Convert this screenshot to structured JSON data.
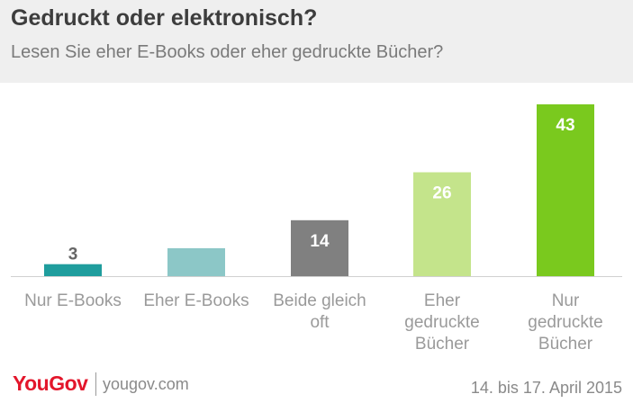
{
  "header": {
    "title": "Gedruckt oder elektronisch?",
    "subtitle": "Lesen Sie eher E-Books oder eher gedruckte Bücher?"
  },
  "chart_data": {
    "type": "bar",
    "categories": [
      [
        "Nur E-Books"
      ],
      [
        "Eher E-Books"
      ],
      [
        "Beide gleich",
        "oft"
      ],
      [
        "Eher",
        "gedruckte",
        "Bücher"
      ],
      [
        "Nur",
        "gedruckte",
        "Bücher"
      ]
    ],
    "values": [
      3,
      7,
      14,
      26,
      43
    ],
    "colors": [
      "#1f9d9d",
      "#8cc7c7",
      "#808080",
      "#c4e48b",
      "#7ac91e"
    ],
    "label_colors": [
      "#666666",
      "#ffffff",
      "#ffffff",
      "#ffffff",
      "#ffffff"
    ],
    "ylim": [
      0,
      43
    ],
    "grid": false,
    "legend": "none"
  },
  "footer": {
    "brand": "YouGov",
    "site": "yougov.com",
    "date": "14. bis 17. April 2015"
  },
  "colors": {
    "brand": "#e3162b",
    "header_bg": "#efefef",
    "axis": "#d0d0d0"
  }
}
